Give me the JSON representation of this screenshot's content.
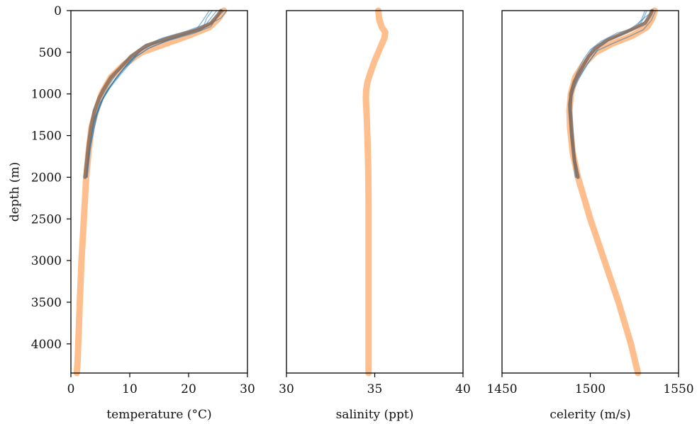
{
  "chart_data": [
    {
      "type": "line",
      "xlabel": "temperature (°C)",
      "ylabel": "depth (m)",
      "xlim": [
        0,
        30
      ],
      "ylim": [
        4350,
        0
      ],
      "xticks": [
        "0",
        "10",
        "20",
        "30"
      ],
      "yticks": [
        "0",
        "500",
        "1000",
        "1500",
        "2000",
        "2500",
        "3000",
        "3500",
        "4000"
      ],
      "ytick_values": [
        0,
        500,
        1000,
        1500,
        2000,
        2500,
        3000,
        3500,
        4000
      ],
      "xtick_values": [
        0,
        10,
        20,
        30
      ],
      "colors": {
        "profiles": "#1f77b4",
        "mean": "#8c6d5a",
        "reference": "#ffbb88"
      },
      "series": [
        {
          "role": "reference",
          "x": [
            26.0,
            25.0,
            23.5,
            20.0,
            16.0,
            12.0,
            9.0,
            6.8,
            5.2,
            4.3,
            3.5,
            3.0,
            2.6,
            2.2,
            1.8,
            1.5,
            1.3,
            1.15,
            1.0
          ],
          "y": [
            0,
            100,
            200,
            300,
            400,
            500,
            650,
            800,
            1000,
            1200,
            1400,
            1700,
            2000,
            2500,
            3000,
            3500,
            3900,
            4200,
            4350
          ]
        },
        {
          "role": "mean",
          "x": [
            25.5,
            25.0,
            23.8,
            21.5,
            17.0,
            12.8,
            10.2,
            8.2,
            6.8,
            5.5,
            4.8,
            4.0,
            3.4,
            3.0,
            2.7,
            2.4
          ],
          "y": [
            0,
            50,
            150,
            230,
            320,
            420,
            550,
            700,
            800,
            950,
            1050,
            1200,
            1400,
            1600,
            1800,
            2000
          ]
        },
        {
          "role": "profiles",
          "x": [
            24.0,
            23.0,
            22.5,
            19.0,
            15.0,
            12.5,
            10.0,
            7.8,
            6.2,
            5.0,
            4.0,
            3.1,
            2.6
          ],
          "y": [
            0,
            100,
            200,
            280,
            350,
            450,
            600,
            800,
            950,
            1100,
            1300,
            1650,
            2000
          ]
        },
        {
          "role": "profiles",
          "x": [
            25.5,
            24.5,
            22.0,
            18.0,
            14.0,
            11.5,
            9.5,
            7.5,
            6.0,
            4.8,
            3.9,
            3.0,
            2.5
          ],
          "y": [
            0,
            120,
            240,
            320,
            400,
            500,
            650,
            820,
            980,
            1150,
            1350,
            1700,
            2000
          ]
        },
        {
          "role": "profiles",
          "x": [
            26.5,
            25.5,
            23.0,
            20.5,
            16.0,
            13.0,
            11.0,
            8.5,
            6.6,
            5.3,
            4.1,
            3.2,
            2.7
          ],
          "y": [
            0,
            90,
            180,
            260,
            370,
            460,
            560,
            760,
            930,
            1080,
            1280,
            1600,
            2000
          ]
        },
        {
          "role": "profiles",
          "x": [
            23.5,
            22.5,
            21.5,
            18.5,
            14.5,
            12.0,
            10.5,
            8.0,
            6.4,
            5.1,
            4.2,
            3.3,
            2.8
          ],
          "y": [
            0,
            110,
            210,
            300,
            380,
            470,
            580,
            780,
            940,
            1100,
            1300,
            1650,
            2000
          ]
        },
        {
          "role": "profiles",
          "x": [
            26.0,
            24.8,
            23.8,
            21.0,
            16.5,
            13.5,
            10.8,
            9.0,
            7.2,
            5.6,
            4.5,
            3.4,
            2.6
          ],
          "y": [
            0,
            80,
            190,
            270,
            360,
            440,
            560,
            700,
            860,
            1040,
            1240,
            1600,
            2000
          ]
        },
        {
          "role": "profiles",
          "x": [
            24.8,
            24.0,
            23.0,
            19.5,
            15.5,
            12.2,
            9.8,
            7.9,
            6.3,
            5.0,
            4.0,
            3.2,
            2.7
          ],
          "y": [
            0,
            70,
            160,
            250,
            330,
            430,
            570,
            740,
            900,
            1060,
            1260,
            1620,
            2000
          ]
        }
      ]
    },
    {
      "type": "line",
      "xlabel": "salinity (ppt)",
      "ylabel": "",
      "xlim": [
        30,
        40
      ],
      "ylim": [
        4350,
        0
      ],
      "xticks": [
        "30",
        "35",
        "40"
      ],
      "xtick_values": [
        30,
        35,
        40
      ],
      "colors": {
        "reference": "#ffbb88"
      },
      "series": [
        {
          "role": "reference",
          "x": [
            35.2,
            35.25,
            35.4,
            35.6,
            35.55,
            35.3,
            35.0,
            34.75,
            34.6,
            34.52,
            34.5,
            34.55,
            34.6,
            34.63,
            34.65,
            34.65,
            34.65,
            34.65
          ],
          "y": [
            0,
            100,
            200,
            260,
            330,
            450,
            600,
            750,
            850,
            950,
            1050,
            1300,
            1600,
            1900,
            2300,
            3000,
            3800,
            4350
          ]
        }
      ]
    },
    {
      "type": "line",
      "xlabel": "celerity (m/s)",
      "ylabel": "",
      "xlim": [
        1450,
        1550
      ],
      "ylim": [
        4350,
        0
      ],
      "xticks": [
        "1450",
        "1500",
        "1550"
      ],
      "xtick_values": [
        1450,
        1500,
        1550
      ],
      "colors": {
        "profiles": "#1f77b4",
        "mean": "#8c6d5a",
        "reference": "#ffbb88"
      },
      "series": [
        {
          "role": "reference",
          "x": [
            1536.5,
            1535.0,
            1532.0,
            1524.0,
            1512.0,
            1503.0,
            1496.0,
            1491.5,
            1489.0,
            1488.2,
            1488.5,
            1490.0,
            1493.0,
            1500.0,
            1508.0,
            1516.0,
            1523.0,
            1527.0
          ],
          "y": [
            0,
            100,
            200,
            300,
            400,
            500,
            650,
            800,
            1000,
            1200,
            1400,
            1700,
            2000,
            2500,
            3000,
            3500,
            4000,
            4350
          ]
        },
        {
          "role": "mean",
          "x": [
            1535.0,
            1534.0,
            1531.0,
            1521.0,
            1510.0,
            1503.0,
            1499.0,
            1495.0,
            1491.0,
            1489.0,
            1488.5,
            1489.5,
            1491.0,
            1493.0
          ],
          "y": [
            0,
            50,
            150,
            250,
            350,
            450,
            550,
            700,
            850,
            1000,
            1200,
            1500,
            1800,
            2000
          ]
        },
        {
          "role": "profiles",
          "x": [
            1532.0,
            1530.0,
            1527.0,
            1518.0,
            1508.0,
            1501.0,
            1497.0,
            1493.0,
            1490.0,
            1488.0,
            1489.5,
            1492.0
          ],
          "y": [
            0,
            100,
            200,
            280,
            360,
            460,
            600,
            760,
            900,
            1100,
            1500,
            2000
          ]
        },
        {
          "role": "profiles",
          "x": [
            1537.0,
            1534.5,
            1530.0,
            1522.0,
            1512.0,
            1504.0,
            1499.0,
            1494.0,
            1490.5,
            1488.5,
            1490.0,
            1492.5
          ],
          "y": [
            0,
            120,
            230,
            310,
            400,
            480,
            620,
            800,
            950,
            1150,
            1550,
            2000
          ]
        },
        {
          "role": "profiles",
          "x": [
            1534.0,
            1533.0,
            1528.0,
            1515.0,
            1506.0,
            1500.0,
            1496.0,
            1492.0,
            1489.5,
            1487.5,
            1489.0,
            1493.5
          ],
          "y": [
            0,
            90,
            190,
            270,
            370,
            470,
            590,
            760,
            920,
            1120,
            1500,
            2000
          ]
        },
        {
          "role": "profiles",
          "x": [
            1536.0,
            1531.0,
            1526.0,
            1520.0,
            1511.0,
            1505.0,
            1501.0,
            1496.0,
            1491.5,
            1489.0,
            1490.5,
            1492.0
          ],
          "y": [
            0,
            80,
            170,
            260,
            350,
            440,
            560,
            720,
            880,
            1080,
            1480,
            2000
          ]
        },
        {
          "role": "profiles",
          "x": [
            1531.0,
            1529.0,
            1525.5,
            1517.0,
            1507.0,
            1502.0,
            1498.0,
            1493.5,
            1490.0,
            1488.0,
            1489.0,
            1491.5
          ],
          "y": [
            0,
            110,
            210,
            300,
            390,
            480,
            610,
            780,
            940,
            1140,
            1540,
            2000
          ]
        }
      ]
    }
  ]
}
